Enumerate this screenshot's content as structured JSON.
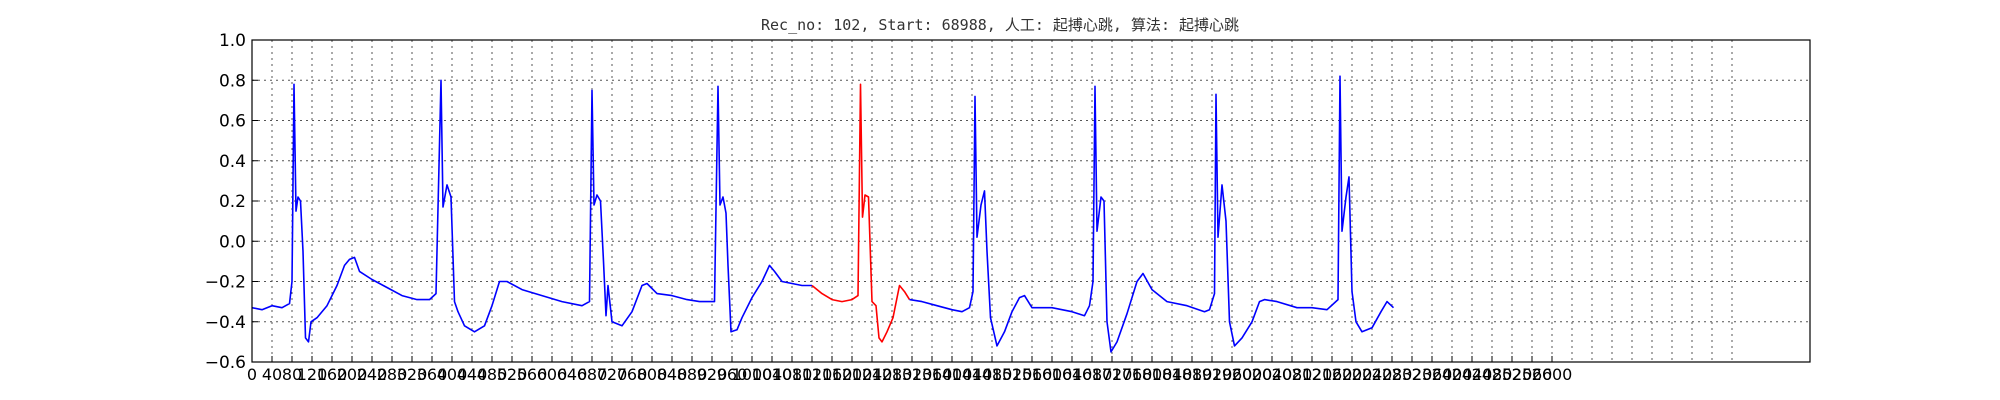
{
  "chart_data": {
    "type": "line",
    "title": "Rec_no: 102, Start: 68988, 人工: 起搏心跳, 算法: 起搏心跳",
    "xlabel": "",
    "ylabel": "",
    "xlim": [
      0,
      3000
    ],
    "ylim": [
      -0.6,
      1.0
    ],
    "grid": true,
    "y_ticks": [
      "1.0",
      "0.8",
      "0.6",
      "0.4",
      "0.2",
      "0.0",
      "−0.2",
      "−0.4",
      "−0.6"
    ],
    "x_ticks": [
      "0",
      "40",
      "80",
      "120",
      "160",
      "200",
      "240",
      "280",
      "320",
      "360",
      "400",
      "440",
      "480",
      "520",
      "560",
      "600",
      "640",
      "680",
      "720",
      "760",
      "800",
      "840",
      "880",
      "920",
      "960",
      "1000",
      "1040",
      "1080",
      "1120",
      "1160",
      "1200",
      "1240",
      "1280",
      "1320",
      "1360",
      "1400",
      "1440",
      "1480",
      "1520",
      "1560",
      "1600",
      "1640",
      "1680",
      "1720",
      "1760",
      "1800",
      "1840",
      "1880",
      "1920",
      "1960",
      "2000",
      "2040",
      "2080",
      "2120",
      "2160",
      "2200",
      "2240",
      "2280",
      "2320",
      "2360",
      "2400",
      "2440",
      "2480",
      "2520",
      "2560",
      "2600"
    ],
    "series": [
      {
        "color": "#0000ff",
        "segments": [
          [
            [
              0,
              -0.33
            ],
            [
              20,
              -0.34
            ],
            [
              40,
              -0.32
            ],
            [
              60,
              -0.33
            ],
            [
              75,
              -0.31
            ],
            [
              80,
              -0.2
            ],
            [
              84,
              0.78
            ],
            [
              88,
              0.15
            ],
            [
              92,
              0.22
            ],
            [
              97,
              0.2
            ],
            [
              102,
              -0.05
            ],
            [
              107,
              -0.48
            ],
            [
              113,
              -0.5
            ],
            [
              118,
              -0.4
            ],
            [
              130,
              -0.38
            ],
            [
              150,
              -0.32
            ],
            [
              170,
              -0.22
            ],
            [
              185,
              -0.12
            ],
            [
              195,
              -0.09
            ],
            [
              205,
              -0.08
            ],
            [
              215,
              -0.15
            ],
            [
              240,
              -0.19
            ],
            [
              270,
              -0.23
            ],
            [
              300,
              -0.27
            ],
            [
              330,
              -0.29
            ],
            [
              355,
              -0.29
            ],
            [
              368,
              -0.26
            ],
            [
              378,
              0.8
            ],
            [
              382,
              0.17
            ],
            [
              390,
              0.28
            ],
            [
              398,
              0.22
            ],
            [
              405,
              -0.3
            ],
            [
              412,
              -0.35
            ],
            [
              425,
              -0.42
            ],
            [
              445,
              -0.45
            ],
            [
              465,
              -0.42
            ],
            [
              480,
              -0.32
            ],
            [
              495,
              -0.2
            ],
            [
              510,
              -0.2
            ],
            [
              540,
              -0.24
            ],
            [
              580,
              -0.27
            ],
            [
              620,
              -0.3
            ],
            [
              660,
              -0.32
            ],
            [
              675,
              -0.3
            ],
            [
              680,
              0.75
            ],
            [
              684,
              0.18
            ],
            [
              690,
              0.23
            ],
            [
              697,
              0.2
            ],
            [
              703,
              -0.1
            ],
            [
              708,
              -0.37
            ],
            [
              712,
              -0.22
            ],
            [
              720,
              -0.4
            ],
            [
              740,
              -0.42
            ],
            [
              760,
              -0.35
            ],
            [
              780,
              -0.22
            ],
            [
              790,
              -0.21
            ],
            [
              810,
              -0.26
            ],
            [
              840,
              -0.27
            ],
            [
              870,
              -0.29
            ],
            [
              895,
              -0.3
            ],
            [
              915,
              -0.3
            ],
            [
              925,
              -0.3
            ],
            [
              932,
              0.77
            ],
            [
              936,
              0.18
            ],
            [
              942,
              0.22
            ],
            [
              948,
              0.14
            ],
            [
              952,
              -0.12
            ],
            [
              958,
              -0.45
            ],
            [
              970,
              -0.44
            ],
            [
              980,
              -0.38
            ],
            [
              1000,
              -0.28
            ],
            [
              1020,
              -0.2
            ],
            [
              1035,
              -0.12
            ],
            [
              1045,
              -0.15
            ],
            [
              1060,
              -0.2
            ],
            [
              1080,
              -0.21
            ],
            [
              1100,
              -0.22
            ],
            [
              1120,
              -0.22
            ]
          ]
        ]
      },
      {
        "color": "#ff0000",
        "segments": [
          [
            [
              1120,
              -0.22
            ],
            [
              1140,
              -0.26
            ],
            [
              1160,
              -0.29
            ],
            [
              1180,
              -0.3
            ],
            [
              1200,
              -0.29
            ],
            [
              1212,
              -0.27
            ],
            [
              1217,
              0.78
            ],
            [
              1221,
              0.12
            ],
            [
              1226,
              0.23
            ],
            [
              1233,
              0.22
            ],
            [
              1240,
              -0.3
            ],
            [
              1248,
              -0.32
            ],
            [
              1254,
              -0.48
            ],
            [
              1260,
              -0.5
            ],
            [
              1270,
              -0.45
            ],
            [
              1282,
              -0.38
            ],
            [
              1295,
              -0.22
            ],
            [
              1305,
              -0.25
            ],
            [
              1315,
              -0.29
            ]
          ]
        ]
      },
      {
        "color": "#0000ff",
        "segments": [
          [
            [
              1315,
              -0.29
            ],
            [
              1340,
              -0.3
            ],
            [
              1370,
              -0.32
            ],
            [
              1400,
              -0.34
            ],
            [
              1420,
              -0.35
            ],
            [
              1435,
              -0.33
            ],
            [
              1442,
              -0.25
            ],
            [
              1446,
              0.72
            ],
            [
              1450,
              0.02
            ],
            [
              1458,
              0.18
            ],
            [
              1465,
              0.25
            ],
            [
              1470,
              -0.05
            ],
            [
              1477,
              -0.38
            ],
            [
              1490,
              -0.52
            ],
            [
              1505,
              -0.45
            ],
            [
              1520,
              -0.35
            ],
            [
              1535,
              -0.28
            ],
            [
              1545,
              -0.27
            ],
            [
              1560,
              -0.33
            ],
            [
              1600,
              -0.33
            ],
            [
              1640,
              -0.35
            ],
            [
              1665,
              -0.37
            ],
            [
              1675,
              -0.32
            ],
            [
              1682,
              -0.2
            ],
            [
              1686,
              0.77
            ],
            [
              1690,
              0.05
            ],
            [
              1698,
              0.22
            ],
            [
              1704,
              0.2
            ],
            [
              1710,
              -0.4
            ],
            [
              1718,
              -0.55
            ],
            [
              1730,
              -0.5
            ],
            [
              1750,
              -0.36
            ],
            [
              1770,
              -0.2
            ],
            [
              1782,
              -0.16
            ],
            [
              1800,
              -0.24
            ],
            [
              1830,
              -0.3
            ],
            [
              1870,
              -0.32
            ],
            [
              1905,
              -0.35
            ],
            [
              1915,
              -0.34
            ],
            [
              1925,
              -0.26
            ],
            [
              1928,
              0.73
            ],
            [
              1932,
              0.02
            ],
            [
              1940,
              0.28
            ],
            [
              1948,
              0.1
            ],
            [
              1955,
              -0.4
            ],
            [
              1965,
              -0.52
            ],
            [
              1980,
              -0.48
            ],
            [
              2000,
              -0.4
            ],
            [
              2015,
              -0.3
            ],
            [
              2025,
              -0.29
            ],
            [
              2050,
              -0.3
            ],
            [
              2090,
              -0.33
            ],
            [
              2120,
              -0.33
            ],
            [
              2150,
              -0.34
            ],
            [
              2172,
              -0.29
            ],
            [
              2176,
              0.82
            ],
            [
              2180,
              0.05
            ],
            [
              2188,
              0.22
            ],
            [
              2194,
              0.32
            ],
            [
              2200,
              -0.25
            ],
            [
              2208,
              -0.4
            ],
            [
              2220,
              -0.45
            ],
            [
              2240,
              -0.43
            ],
            [
              2258,
              -0.35
            ],
            [
              2270,
              -0.3
            ],
            [
              2283,
              -0.33
            ]
          ]
        ]
      }
    ]
  }
}
